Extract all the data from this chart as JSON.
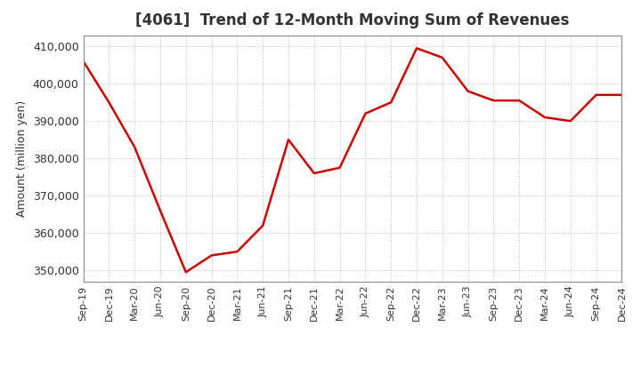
{
  "title": "[4061]  Trend of 12-Month Moving Sum of Revenues",
  "ylabel": "Amount (million yen)",
  "background_color": "#ffffff",
  "grid_color": "#bbbbbb",
  "line_color": "#cc0000",
  "x_labels": [
    "Sep-19",
    "Dec-19",
    "Mar-20",
    "Jun-20",
    "Sep-20",
    "Dec-20",
    "Mar-21",
    "Jun-21",
    "Sep-21",
    "Dec-21",
    "Mar-22",
    "Jun-22",
    "Sep-22",
    "Dec-22",
    "Mar-23",
    "Jun-23",
    "Sep-23",
    "Dec-23",
    "Mar-24",
    "Jun-24",
    "Sep-24",
    "Dec-24"
  ],
  "values": [
    406000,
    395000,
    383000,
    366000,
    349500,
    354000,
    355000,
    362000,
    385000,
    376000,
    377500,
    392000,
    395000,
    409500,
    407000,
    398000,
    395500,
    395500,
    391000,
    390000,
    397000,
    397000
  ],
  "ylim": [
    347000,
    413000
  ],
  "yticks": [
    350000,
    360000,
    370000,
    380000,
    390000,
    400000,
    410000
  ]
}
